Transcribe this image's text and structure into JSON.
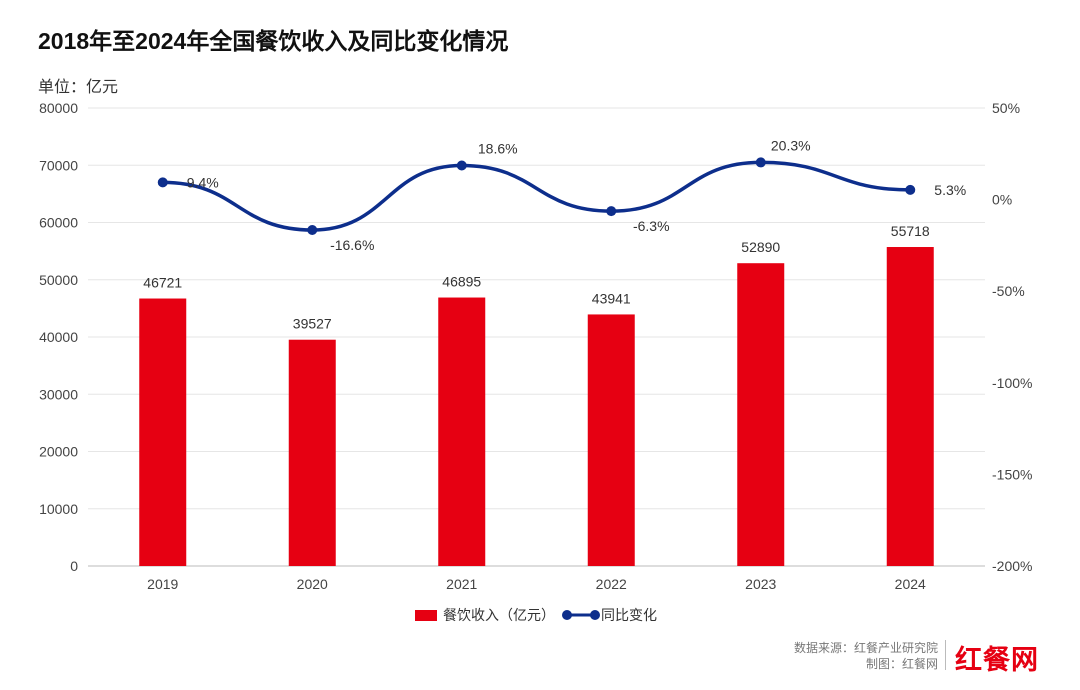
{
  "title": "2018年至2024年全国餐饮收入及同比变化情况",
  "unit_label": "单位：亿元",
  "chart_data": {
    "type": "bar+line",
    "categories": [
      "2019",
      "2020",
      "2021",
      "2022",
      "2023",
      "2024"
    ],
    "series": [
      {
        "name": "餐饮收入（亿元）",
        "type": "bar",
        "axis": "left",
        "values": [
          46721,
          39527,
          46895,
          43941,
          52890,
          55718
        ],
        "labels": [
          "46721",
          "39527",
          "46895",
          "43941",
          "52890",
          "55718"
        ],
        "color": "#e60012"
      },
      {
        "name": "同比变化",
        "type": "line",
        "axis": "right",
        "values": [
          9.4,
          -16.6,
          18.6,
          -6.3,
          20.3,
          5.3
        ],
        "labels": [
          "9.4%",
          "-16.6%",
          "18.6%",
          "-6.3%",
          "20.3%",
          "5.3%"
        ],
        "color": "#0d2e8c"
      }
    ],
    "y_left": {
      "range": [
        0,
        80000
      ],
      "ticks": [
        "0",
        "10000",
        "20000",
        "30000",
        "40000",
        "50000",
        "60000",
        "70000",
        "80000"
      ]
    },
    "y_right": {
      "range": [
        -200,
        50
      ],
      "ticks": [
        "-200%",
        "-150%",
        "-100%",
        "-50%",
        "0%",
        "50%"
      ]
    },
    "grid": true,
    "legend_position": "bottom"
  },
  "legend": {
    "bar": "餐饮收入（亿元）",
    "line": "同比变化"
  },
  "footer": {
    "source": "数据来源：红餐产业研究院",
    "made_by": "制图：红餐网",
    "logo": "红餐网"
  }
}
